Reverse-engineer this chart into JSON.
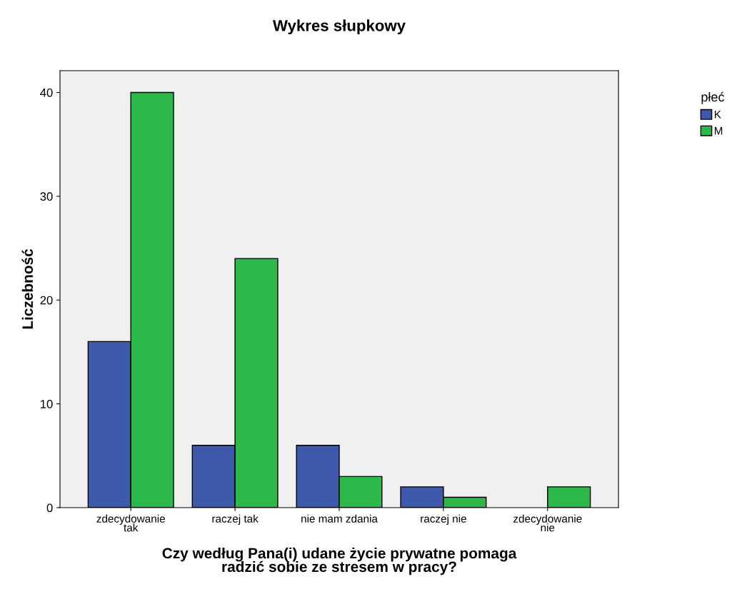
{
  "chart_data": {
    "type": "bar",
    "title": "Wykres słupkowy",
    "xlabel": "Czy według Pana(i) udane życie prywatne pomaga\nradzić sobie ze stresem w pracy?",
    "ylabel": "Liczebność",
    "legend_title": "płeć",
    "categories": [
      "zdecydowanie\ntak",
      "raczej tak",
      "nie mam zdania",
      "raczej nie",
      "zdecydowanie\nnie"
    ],
    "series": [
      {
        "name": "K",
        "color": "#3e58ac",
        "values": [
          16,
          6,
          6,
          2,
          null
        ]
      },
      {
        "name": "M",
        "color": "#2db84a",
        "values": [
          40,
          24,
          3,
          1,
          2
        ]
      }
    ],
    "ylim": [
      0,
      42.1
    ],
    "yticks": [
      0,
      10,
      20,
      30,
      40
    ],
    "grid": false,
    "legend": "top right"
  }
}
